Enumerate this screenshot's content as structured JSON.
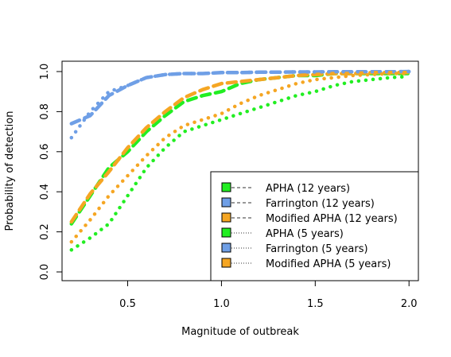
{
  "chart_data": {
    "type": "line",
    "xlabel": "Magnitude of outbreak",
    "ylabel": "Probability of detection",
    "xlim": [
      0.15,
      2.05
    ],
    "ylim": [
      0.0,
      1.0
    ],
    "x_ticks": [
      "0.5",
      "1.0",
      "1.5",
      "2.0"
    ],
    "x_tick_values": [
      0.5,
      1.0,
      1.5,
      2.0
    ],
    "y_ticks": [
      "0.0",
      "0.2",
      "0.4",
      "0.6",
      "0.8",
      "1.0"
    ],
    "y_tick_values": [
      0.0,
      0.2,
      0.4,
      0.6,
      0.8,
      1.0
    ],
    "grid": false,
    "legend_position": "bottom-right",
    "x": [
      0.2,
      0.3,
      0.4,
      0.5,
      0.6,
      0.7,
      0.8,
      0.9,
      1.0,
      1.1,
      1.2,
      1.3,
      1.4,
      1.5,
      1.6,
      1.7,
      1.8,
      1.9,
      2.0
    ],
    "series": [
      {
        "name": "APHA (12 years)",
        "color": "#22ee22",
        "dash": "dashed",
        "values": [
          0.24,
          0.38,
          0.52,
          0.6,
          0.7,
          0.78,
          0.85,
          0.88,
          0.9,
          0.94,
          0.96,
          0.97,
          0.98,
          0.98,
          0.99,
          0.99,
          0.99,
          0.99,
          0.99
        ]
      },
      {
        "name": "Farrington (12 years)",
        "color": "#6f9fe6",
        "dash": "dashed",
        "values": [
          0.74,
          0.78,
          0.88,
          0.93,
          0.97,
          0.985,
          0.99,
          0.99,
          0.995,
          0.995,
          0.997,
          0.997,
          0.998,
          0.998,
          0.999,
          0.999,
          0.999,
          0.999,
          1.0
        ]
      },
      {
        "name": "Modified APHA (12 years)",
        "color": "#f5a623",
        "dash": "dashed",
        "values": [
          0.25,
          0.39,
          0.5,
          0.62,
          0.72,
          0.8,
          0.87,
          0.91,
          0.94,
          0.95,
          0.96,
          0.97,
          0.98,
          0.985,
          0.99,
          0.99,
          0.995,
          0.995,
          0.995
        ]
      },
      {
        "name": "APHA (5 years)",
        "color": "#22ee22",
        "dash": "dotted",
        "values": [
          0.11,
          0.17,
          0.24,
          0.38,
          0.52,
          0.62,
          0.7,
          0.73,
          0.76,
          0.79,
          0.82,
          0.85,
          0.88,
          0.9,
          0.93,
          0.95,
          0.96,
          0.97,
          0.975
        ]
      },
      {
        "name": "Farrington (5 years)",
        "color": "#6f9fe6",
        "dash": "dotted",
        "values": [
          0.67,
          0.8,
          0.9,
          0.93,
          0.97,
          0.985,
          0.99,
          0.99,
          0.995,
          0.995,
          0.997,
          0.997,
          0.998,
          0.998,
          0.999,
          0.999,
          0.999,
          0.999,
          1.0
        ]
      },
      {
        "name": "Modified APHA (5 years)",
        "color": "#f5a623",
        "dash": "dotted",
        "values": [
          0.15,
          0.26,
          0.38,
          0.48,
          0.58,
          0.67,
          0.73,
          0.76,
          0.79,
          0.84,
          0.88,
          0.91,
          0.94,
          0.96,
          0.97,
          0.98,
          0.985,
          0.99,
          0.99
        ]
      }
    ]
  }
}
